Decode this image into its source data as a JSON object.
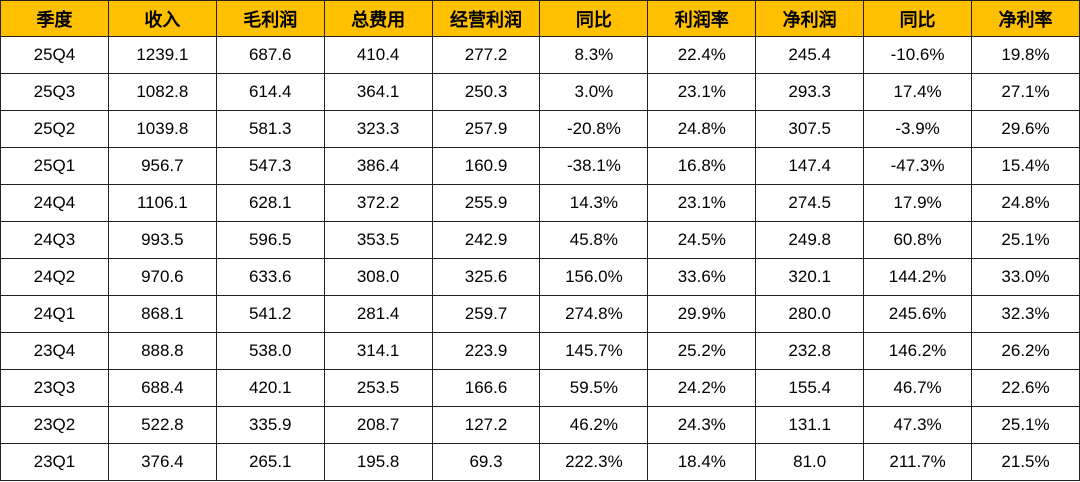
{
  "table": {
    "header": [
      "季度",
      "收入",
      "毛利润",
      "总费用",
      "经营利润",
      "同比",
      "利润率",
      "净利润",
      "同比",
      "净利率"
    ],
    "rows": [
      [
        "25Q4",
        "1239.1",
        "687.6",
        "410.4",
        "277.2",
        "8.3%",
        "22.4%",
        "245.4",
        "-10.6%",
        "19.8%"
      ],
      [
        "25Q3",
        "1082.8",
        "614.4",
        "364.1",
        "250.3",
        "3.0%",
        "23.1%",
        "293.3",
        "17.4%",
        "27.1%"
      ],
      [
        "25Q2",
        "1039.8",
        "581.3",
        "323.3",
        "257.9",
        "-20.8%",
        "24.8%",
        "307.5",
        "-3.9%",
        "29.6%"
      ],
      [
        "25Q1",
        "956.7",
        "547.3",
        "386.4",
        "160.9",
        "-38.1%",
        "16.8%",
        "147.4",
        "-47.3%",
        "15.4%"
      ],
      [
        "24Q4",
        "1106.1",
        "628.1",
        "372.2",
        "255.9",
        "14.3%",
        "23.1%",
        "274.5",
        "17.9%",
        "24.8%"
      ],
      [
        "24Q3",
        "993.5",
        "596.5",
        "353.5",
        "242.9",
        "45.8%",
        "24.5%",
        "249.8",
        "60.8%",
        "25.1%"
      ],
      [
        "24Q2",
        "970.6",
        "633.6",
        "308.0",
        "325.6",
        "156.0%",
        "33.6%",
        "320.1",
        "144.2%",
        "33.0%"
      ],
      [
        "24Q1",
        "868.1",
        "541.2",
        "281.4",
        "259.7",
        "274.8%",
        "29.9%",
        "280.0",
        "245.6%",
        "32.3%"
      ],
      [
        "23Q4",
        "888.8",
        "538.0",
        "314.1",
        "223.9",
        "145.7%",
        "25.2%",
        "232.8",
        "146.2%",
        "26.2%"
      ],
      [
        "23Q3",
        "688.4",
        "420.1",
        "253.5",
        "166.6",
        "59.5%",
        "24.2%",
        "155.4",
        "46.7%",
        "22.6%"
      ],
      [
        "23Q2",
        "522.8",
        "335.9",
        "208.7",
        "127.2",
        "46.2%",
        "24.3%",
        "131.1",
        "47.3%",
        "25.1%"
      ],
      [
        "23Q1",
        "376.4",
        "265.1",
        "195.8",
        "69.3",
        "222.3%",
        "18.4%",
        "81.0",
        "211.7%",
        "21.5%"
      ]
    ]
  }
}
